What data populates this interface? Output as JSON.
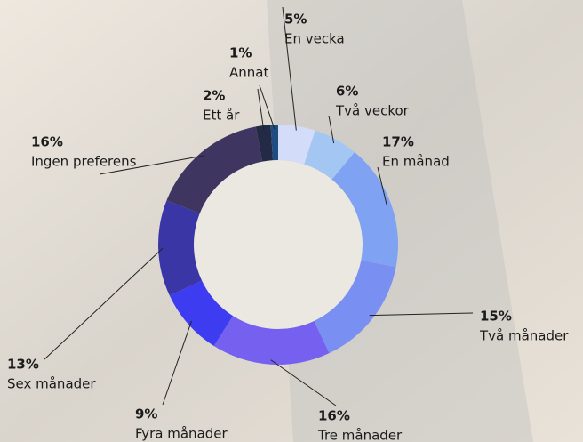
{
  "chart_data": {
    "type": "donut",
    "categories": [
      "En vecka",
      "Två veckor",
      "En månad",
      "Två månader",
      "Tre månader",
      "Fyra månader",
      "Sex månader",
      "Ingen preferens",
      "Ett år",
      "Annat"
    ],
    "values": [
      5,
      6,
      17,
      15,
      16,
      9,
      13,
      16,
      2,
      1
    ],
    "value_labels": [
      "5%",
      "6%",
      "17%",
      "15%",
      "16%",
      "9%",
      "13%",
      "16%",
      "2%",
      "1%"
    ],
    "colors": [
      "#d3dcf8",
      "#a3c6f3",
      "#7fa2f3",
      "#7a8ff2",
      "#7560f0",
      "#3d3cf0",
      "#3b36a6",
      "#3e3560",
      "#222a45",
      "#1f4d82"
    ]
  }
}
